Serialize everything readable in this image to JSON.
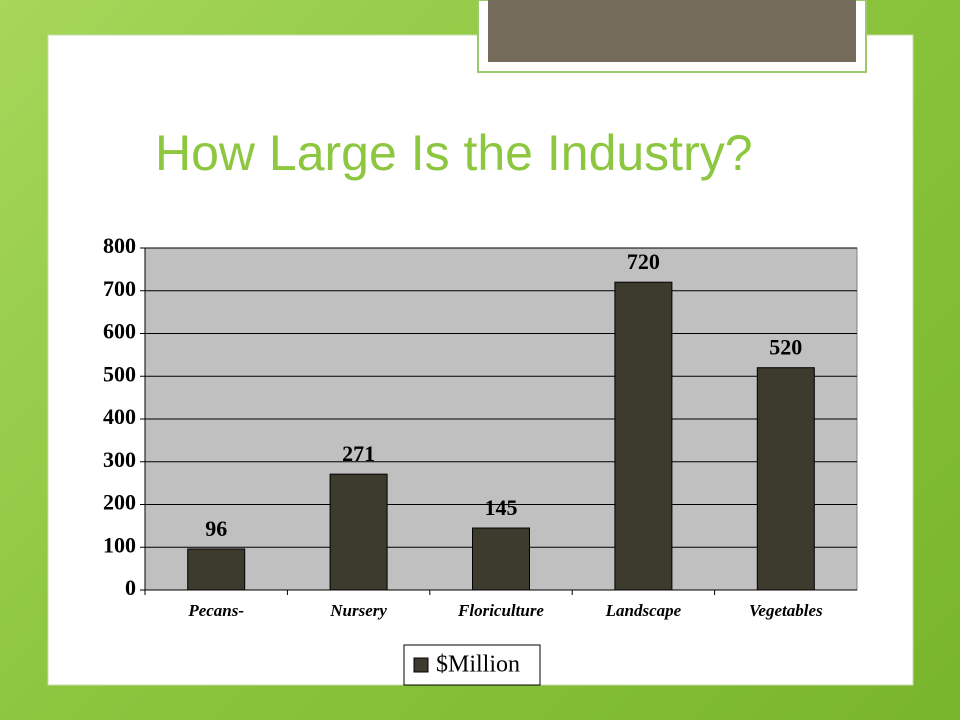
{
  "chart_data": {
    "type": "bar",
    "title": "How Large Is the Industry?",
    "categories": [
      "Pecans-",
      "Nursery",
      "Floriculture",
      "Landscape",
      "Vegetables"
    ],
    "series": [
      {
        "name": "$Million",
        "color": "#3d3a2e",
        "values": [
          96,
          271,
          145,
          720,
          520
        ]
      }
    ],
    "ylim": [
      0,
      800
    ],
    "yticks": [
      0,
      100,
      200,
      300,
      400,
      500,
      600,
      700,
      800
    ],
    "grid": true,
    "legend": "bottom"
  }
}
